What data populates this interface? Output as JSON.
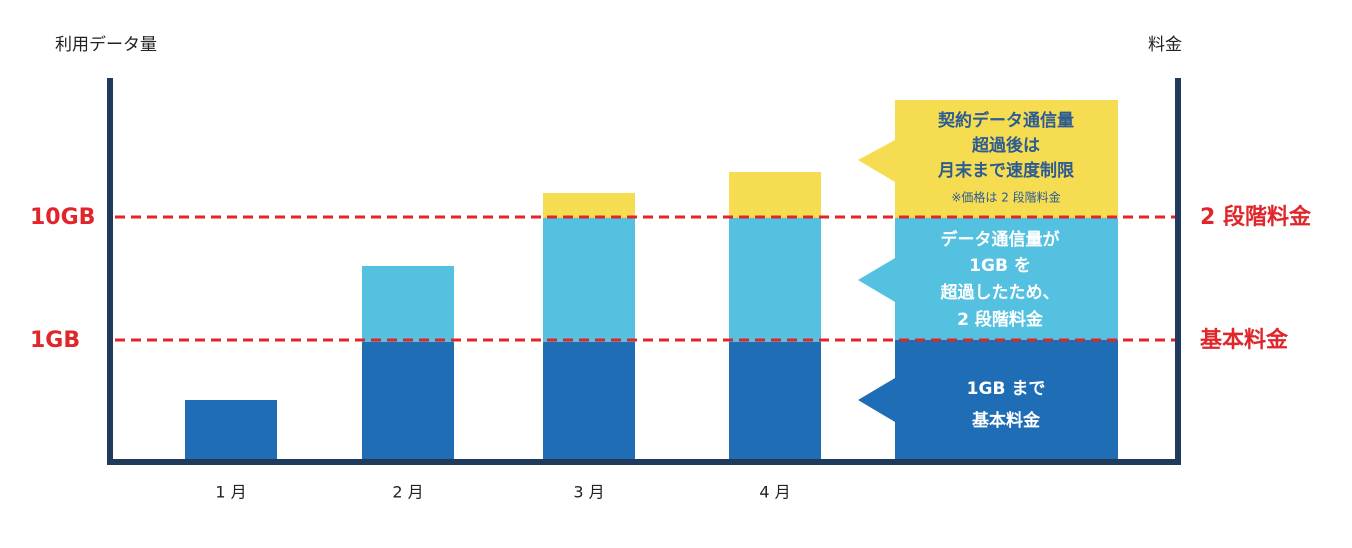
{
  "y_axis_label": "利用データ量",
  "y2_axis_label": "料金",
  "thresholds": [
    {
      "label": "10GB",
      "right_label": "2 段階料金"
    },
    {
      "label": "1GB",
      "right_label": "基本料金"
    }
  ],
  "categories": [
    "1 月",
    "2 月",
    "3 月",
    "4 月"
  ],
  "callouts": {
    "over_limit": [
      "契約データ通信量",
      "超過後は",
      "月末まで速度制限"
    ],
    "over_limit_note": "※価格は 2 段階料金",
    "second_tier": [
      "データ通信量が",
      "1GB を",
      "超過したため、",
      "2 段階料金"
    ],
    "base": [
      "1GB まで",
      "基本料金"
    ]
  }
}
